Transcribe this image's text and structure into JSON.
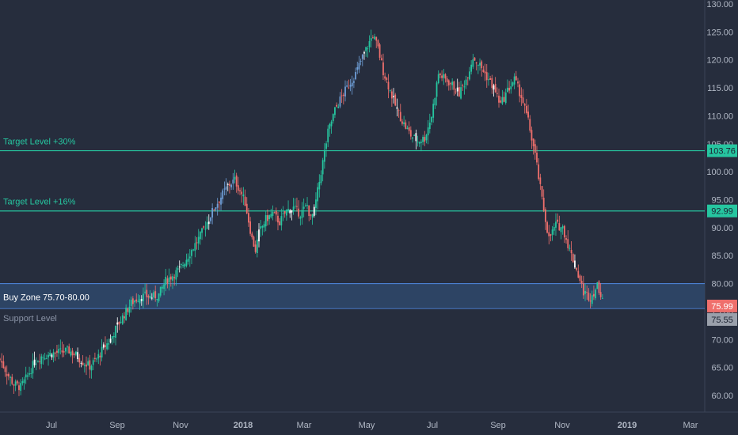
{
  "chart_data": {
    "type": "candlestick",
    "ylim": [
      57,
      131
    ],
    "y_ticks": [
      "60.00",
      "65.00",
      "70.00",
      "75.00",
      "80.00",
      "85.00",
      "90.00",
      "95.00",
      "100.00",
      "105.00",
      "110.00",
      "115.00",
      "120.00",
      "125.00",
      "130.00"
    ],
    "x_ticks": [
      "Jul",
      "Sep",
      "Nov",
      "2018",
      "Mar",
      "May",
      "Jul",
      "Sep",
      "Nov",
      "2019",
      "Mar"
    ],
    "bull_color": "#26c6a0",
    "bear_color": "#ef6f6c",
    "neutral_color": "#ffffff",
    "blue_color": "#6f9fd8",
    "price_path": [
      [
        0,
        66.5
      ],
      [
        4,
        64
      ],
      [
        8,
        62
      ],
      [
        12,
        61.5
      ],
      [
        16,
        63.5
      ],
      [
        20,
        66
      ],
      [
        24,
        67
      ],
      [
        30,
        67.5
      ],
      [
        36,
        67.8
      ],
      [
        40,
        68
      ],
      [
        44,
        67.2
      ],
      [
        48,
        66
      ],
      [
        52,
        65.2
      ],
      [
        56,
        66.5
      ],
      [
        60,
        68.5
      ],
      [
        64,
        70
      ],
      [
        68,
        72.5
      ],
      [
        72,
        74.5
      ],
      [
        76,
        76.5
      ],
      [
        80,
        77.5
      ],
      [
        84,
        77.8
      ],
      [
        88,
        77.6
      ],
      [
        92,
        78
      ],
      [
        96,
        80.5
      ],
      [
        100,
        81.5
      ],
      [
        104,
        82.5
      ],
      [
        108,
        84.5
      ],
      [
        112,
        86.5
      ],
      [
        116,
        88.5
      ],
      [
        120,
        91
      ],
      [
        124,
        93.5
      ],
      [
        128,
        95.5
      ],
      [
        132,
        97.5
      ],
      [
        136,
        98.5
      ],
      [
        140,
        96
      ],
      [
        142,
        94.5
      ],
      [
        146,
        88
      ],
      [
        148,
        86
      ],
      [
        150,
        89
      ],
      [
        154,
        91.5
      ],
      [
        158,
        92.5
      ],
      [
        162,
        91
      ],
      [
        166,
        93
      ],
      [
        170,
        93.5
      ],
      [
        174,
        92.5
      ],
      [
        178,
        94
      ],
      [
        180,
        91.5
      ],
      [
        182,
        93
      ],
      [
        186,
        100
      ],
      [
        190,
        107
      ],
      [
        194,
        111
      ],
      [
        198,
        113.5
      ],
      [
        202,
        115.5
      ],
      [
        206,
        117.5
      ],
      [
        210,
        120.5
      ],
      [
        213,
        122.5
      ],
      [
        216,
        124.5
      ],
      [
        219,
        122
      ],
      [
        222,
        118
      ],
      [
        226,
        114.5
      ],
      [
        230,
        111
      ],
      [
        234,
        108.5
      ],
      [
        238,
        106.5
      ],
      [
        242,
        105.5
      ],
      [
        246,
        106
      ],
      [
        250,
        110
      ],
      [
        254,
        117.5
      ],
      [
        258,
        116.5
      ],
      [
        262,
        115.5
      ],
      [
        266,
        114
      ],
      [
        270,
        116.5
      ],
      [
        274,
        120.5
      ],
      [
        278,
        119
      ],
      [
        282,
        117
      ],
      [
        286,
        115
      ],
      [
        290,
        112
      ],
      [
        294,
        114.5
      ],
      [
        298,
        116.5
      ],
      [
        302,
        113.5
      ],
      [
        306,
        109
      ],
      [
        310,
        103
      ],
      [
        314,
        95
      ],
      [
        318,
        88
      ],
      [
        322,
        90.5
      ],
      [
        326,
        90
      ],
      [
        330,
        86
      ],
      [
        334,
        82.5
      ],
      [
        338,
        78.5
      ],
      [
        342,
        77.5
      ],
      [
        346,
        79.5
      ],
      [
        349,
        77.7
      ]
    ],
    "series": [
      {
        "name": "Target Level +30%",
        "value": 103.76,
        "color": "#26c6a0"
      },
      {
        "name": "Target Level +16%",
        "value": 92.99,
        "color": "#26c6a0"
      }
    ],
    "zone": {
      "label": "Buy Zone 75.70-80.00",
      "low": 75.7,
      "high": 80.0,
      "color": "#4a7fd0"
    },
    "support": {
      "label": "Support Level",
      "value": 75.55
    },
    "last_price": {
      "value": 75.99,
      "label": "75.99",
      "color": "#ef6f6c"
    },
    "support_price_label": "75.55",
    "target1_price_label": "103.76",
    "target2_price_label": "92.99"
  }
}
